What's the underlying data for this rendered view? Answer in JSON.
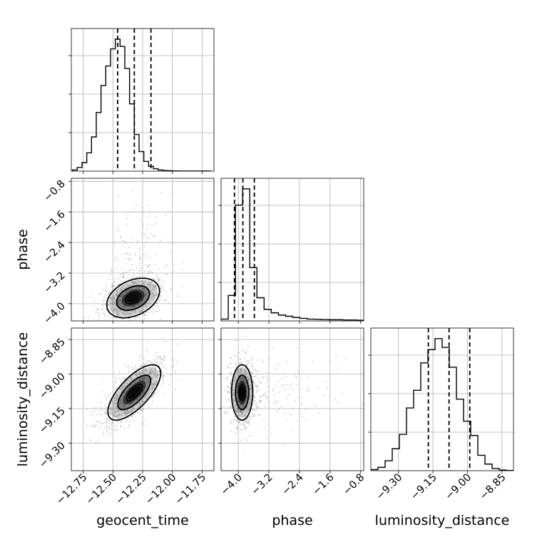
{
  "chart_data": {
    "type": "corner",
    "parameters": [
      {
        "name": "geocent_time",
        "label": "geocent_time",
        "range": [
          -12.85,
          -11.65
        ],
        "ticks": [
          -12.75,
          -12.5,
          -12.25,
          -12.0,
          -11.75
        ],
        "tick_labels": [
          "−12.75",
          "−12.50",
          "−12.25",
          "−12.00",
          "−11.75"
        ]
      },
      {
        "name": "phase",
        "label": "phase",
        "range": [
          -4.45,
          -0.72
        ],
        "ticks": [
          -4.0,
          -3.2,
          -2.4,
          -1.6,
          -0.8
        ],
        "tick_labels": [
          "−4.0",
          "−3.2",
          "−2.4",
          "−1.6",
          "−0.8"
        ]
      },
      {
        "name": "luminosity_distance",
        "label": "luminosity_distance",
        "range": [
          -9.42,
          -8.8
        ],
        "ticks": [
          -9.3,
          -9.15,
          -9.0,
          -8.85
        ],
        "tick_labels": [
          "−9.30",
          "−9.15",
          "−9.00",
          "−8.85"
        ]
      }
    ],
    "histograms": [
      {
        "parameter": "geocent_time",
        "bins": [
          -12.84,
          -12.8,
          -12.76,
          -12.72,
          -12.68,
          -12.64,
          -12.6,
          -12.56,
          -12.52,
          -12.48,
          -12.44,
          -12.4,
          -12.36,
          -12.32,
          -12.28,
          -12.24,
          -12.2,
          -12.16,
          -12.12,
          -12.08,
          -12.04,
          -12.0,
          -11.96,
          -11.92,
          -11.88,
          -11.84,
          -11.8,
          -11.76,
          -11.72,
          -11.68
        ],
        "counts": [
          1,
          3,
          7,
          15,
          28,
          48,
          70,
          86,
          100,
          108,
          102,
          84,
          55,
          30,
          16,
          8,
          4,
          2,
          1,
          0.5,
          0.3,
          0.2,
          0.1,
          0.1,
          0.1,
          0.1,
          0.1,
          0.1,
          0.1
        ],
        "quantiles": [
          -12.46,
          -12.32,
          -12.18
        ]
      },
      {
        "parameter": "phase",
        "bins": [
          -4.45,
          -4.262,
          -4.075,
          -3.888,
          -3.7,
          -3.512,
          -3.325,
          -3.138,
          -2.95,
          -2.762,
          -2.575,
          -2.388,
          -2.2,
          -2.012,
          -1.825,
          -1.638,
          -1.45,
          -1.262,
          -1.075,
          -0.888,
          -0.7
        ],
        "counts": [
          0.8,
          11,
          50,
          57,
          23,
          10,
          5,
          3.5,
          2.5,
          2,
          1.5,
          1.1,
          0.8,
          0.7,
          0.6,
          0.5,
          0.5,
          0.4,
          0.4,
          0.3
        ],
        "quantiles": [
          -4.1,
          -3.88,
          -3.58
        ]
      },
      {
        "parameter": "luminosity_distance",
        "bins": [
          -9.42,
          -9.389,
          -9.358,
          -9.327,
          -9.296,
          -9.265,
          -9.234,
          -9.203,
          -9.172,
          -9.141,
          -9.11,
          -9.079,
          -9.048,
          -9.017,
          -8.986,
          -8.955,
          -8.924,
          -8.893,
          -8.862,
          -8.831,
          -8.8
        ],
        "counts": [
          1,
          3,
          9,
          20,
          33,
          57,
          73,
          98,
          110,
          120,
          112,
          94,
          65,
          45,
          32,
          14,
          6,
          2,
          0.6,
          0.2
        ],
        "quantiles": [
          -9.17,
          -9.08,
          -8.99
        ]
      }
    ],
    "pairs": [
      {
        "x": "geocent_time",
        "y": "phase",
        "mean": [
          -12.33,
          -3.85
        ],
        "std": [
          0.12,
          0.28
        ],
        "correlation": 0.35,
        "contour_levels": [
          0.39,
          0.86,
          0.99
        ]
      },
      {
        "x": "geocent_time",
        "y": "luminosity_distance",
        "mean": [
          -12.32,
          -9.08
        ],
        "std": [
          0.12,
          0.065
        ],
        "correlation": 0.7,
        "contour_levels": [
          0.39,
          0.86,
          0.99
        ]
      },
      {
        "x": "phase",
        "y": "luminosity_distance",
        "mean": [
          -3.9,
          -9.08
        ],
        "std": [
          0.15,
          0.065
        ],
        "correlation": 0.0,
        "contour_levels": [
          0.39,
          0.86,
          0.99
        ]
      }
    ],
    "grid": true,
    "colors": {
      "line": "#000000",
      "grid": "#b0b0b0",
      "points": "#7f7f7f"
    }
  }
}
